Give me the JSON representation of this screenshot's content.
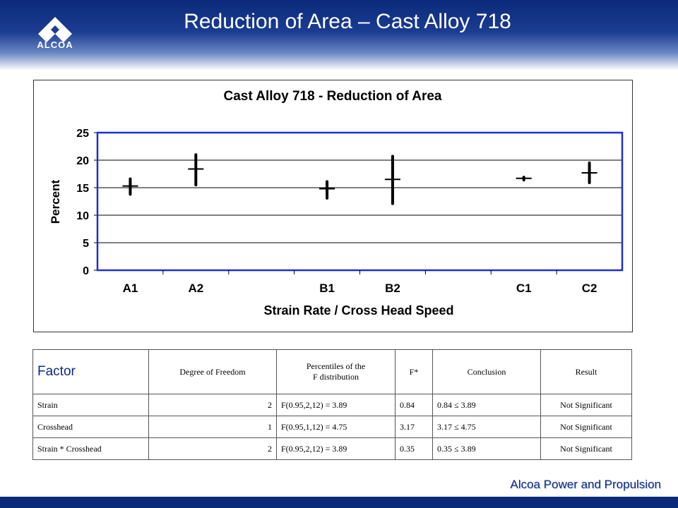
{
  "header": {
    "title": "Reduction of Area – Cast Alloy 718",
    "logo_text": "ALCOA"
  },
  "chart_data": {
    "type": "scatter",
    "title": "Cast Alloy 718 - Reduction of Area",
    "xlabel": "Strain Rate / Cross Head Speed",
    "ylabel": "Percent",
    "ylim": [
      0,
      25
    ],
    "yticks": [
      0,
      5,
      10,
      15,
      20,
      25
    ],
    "grid": true,
    "groups": [
      {
        "label": "A1",
        "mean": 15.3,
        "min": 13.8,
        "max": 16.6
      },
      {
        "label": "A2",
        "mean": 18.4,
        "min": 15.5,
        "max": 21.0
      },
      {
        "label": "",
        "mean": null,
        "min": null,
        "max": null
      },
      {
        "label": "B1",
        "mean": 14.8,
        "min": 13.1,
        "max": 16.1
      },
      {
        "label": "B2",
        "mean": 16.5,
        "min": 12.1,
        "max": 20.7
      },
      {
        "label": "",
        "mean": null,
        "min": null,
        "max": null
      },
      {
        "label": "C1",
        "mean": 16.7,
        "min": 16.4,
        "max": 16.9
      },
      {
        "label": "C2",
        "mean": 17.7,
        "min": 15.9,
        "max": 19.5
      }
    ],
    "colors": {
      "plot_border": "#1a2fd8",
      "marks": "#000000"
    }
  },
  "table": {
    "headers": {
      "factor": "Factor",
      "df": "Degree of Freedom",
      "pct_line1": "Percentiles of the",
      "pct_line2": "F distribution",
      "f": "F*",
      "conclusion": "Conclusion",
      "result": "Result"
    },
    "rows": [
      {
        "factor": "Strain",
        "df": "2",
        "pct": "F(0.95,2,12) = 3.89",
        "f": "0.84",
        "conclusion": "0.84 ≤ 3.89",
        "result": "Not Significant"
      },
      {
        "factor": "Crosshead",
        "df": "1",
        "pct": "F(0.95,1,12) = 4.75",
        "f": "3.17",
        "conclusion": "3.17 ≤ 4.75",
        "result": "Not Significant"
      },
      {
        "factor": "Strain * Crosshead",
        "df": "2",
        "pct": "F(0.95,2,12) = 3.89",
        "f": "0.35",
        "conclusion": "0.35 ≤ 3.89",
        "result": "Not Significant"
      }
    ]
  },
  "footer": {
    "text": "Alcoa Power and Propulsion"
  }
}
